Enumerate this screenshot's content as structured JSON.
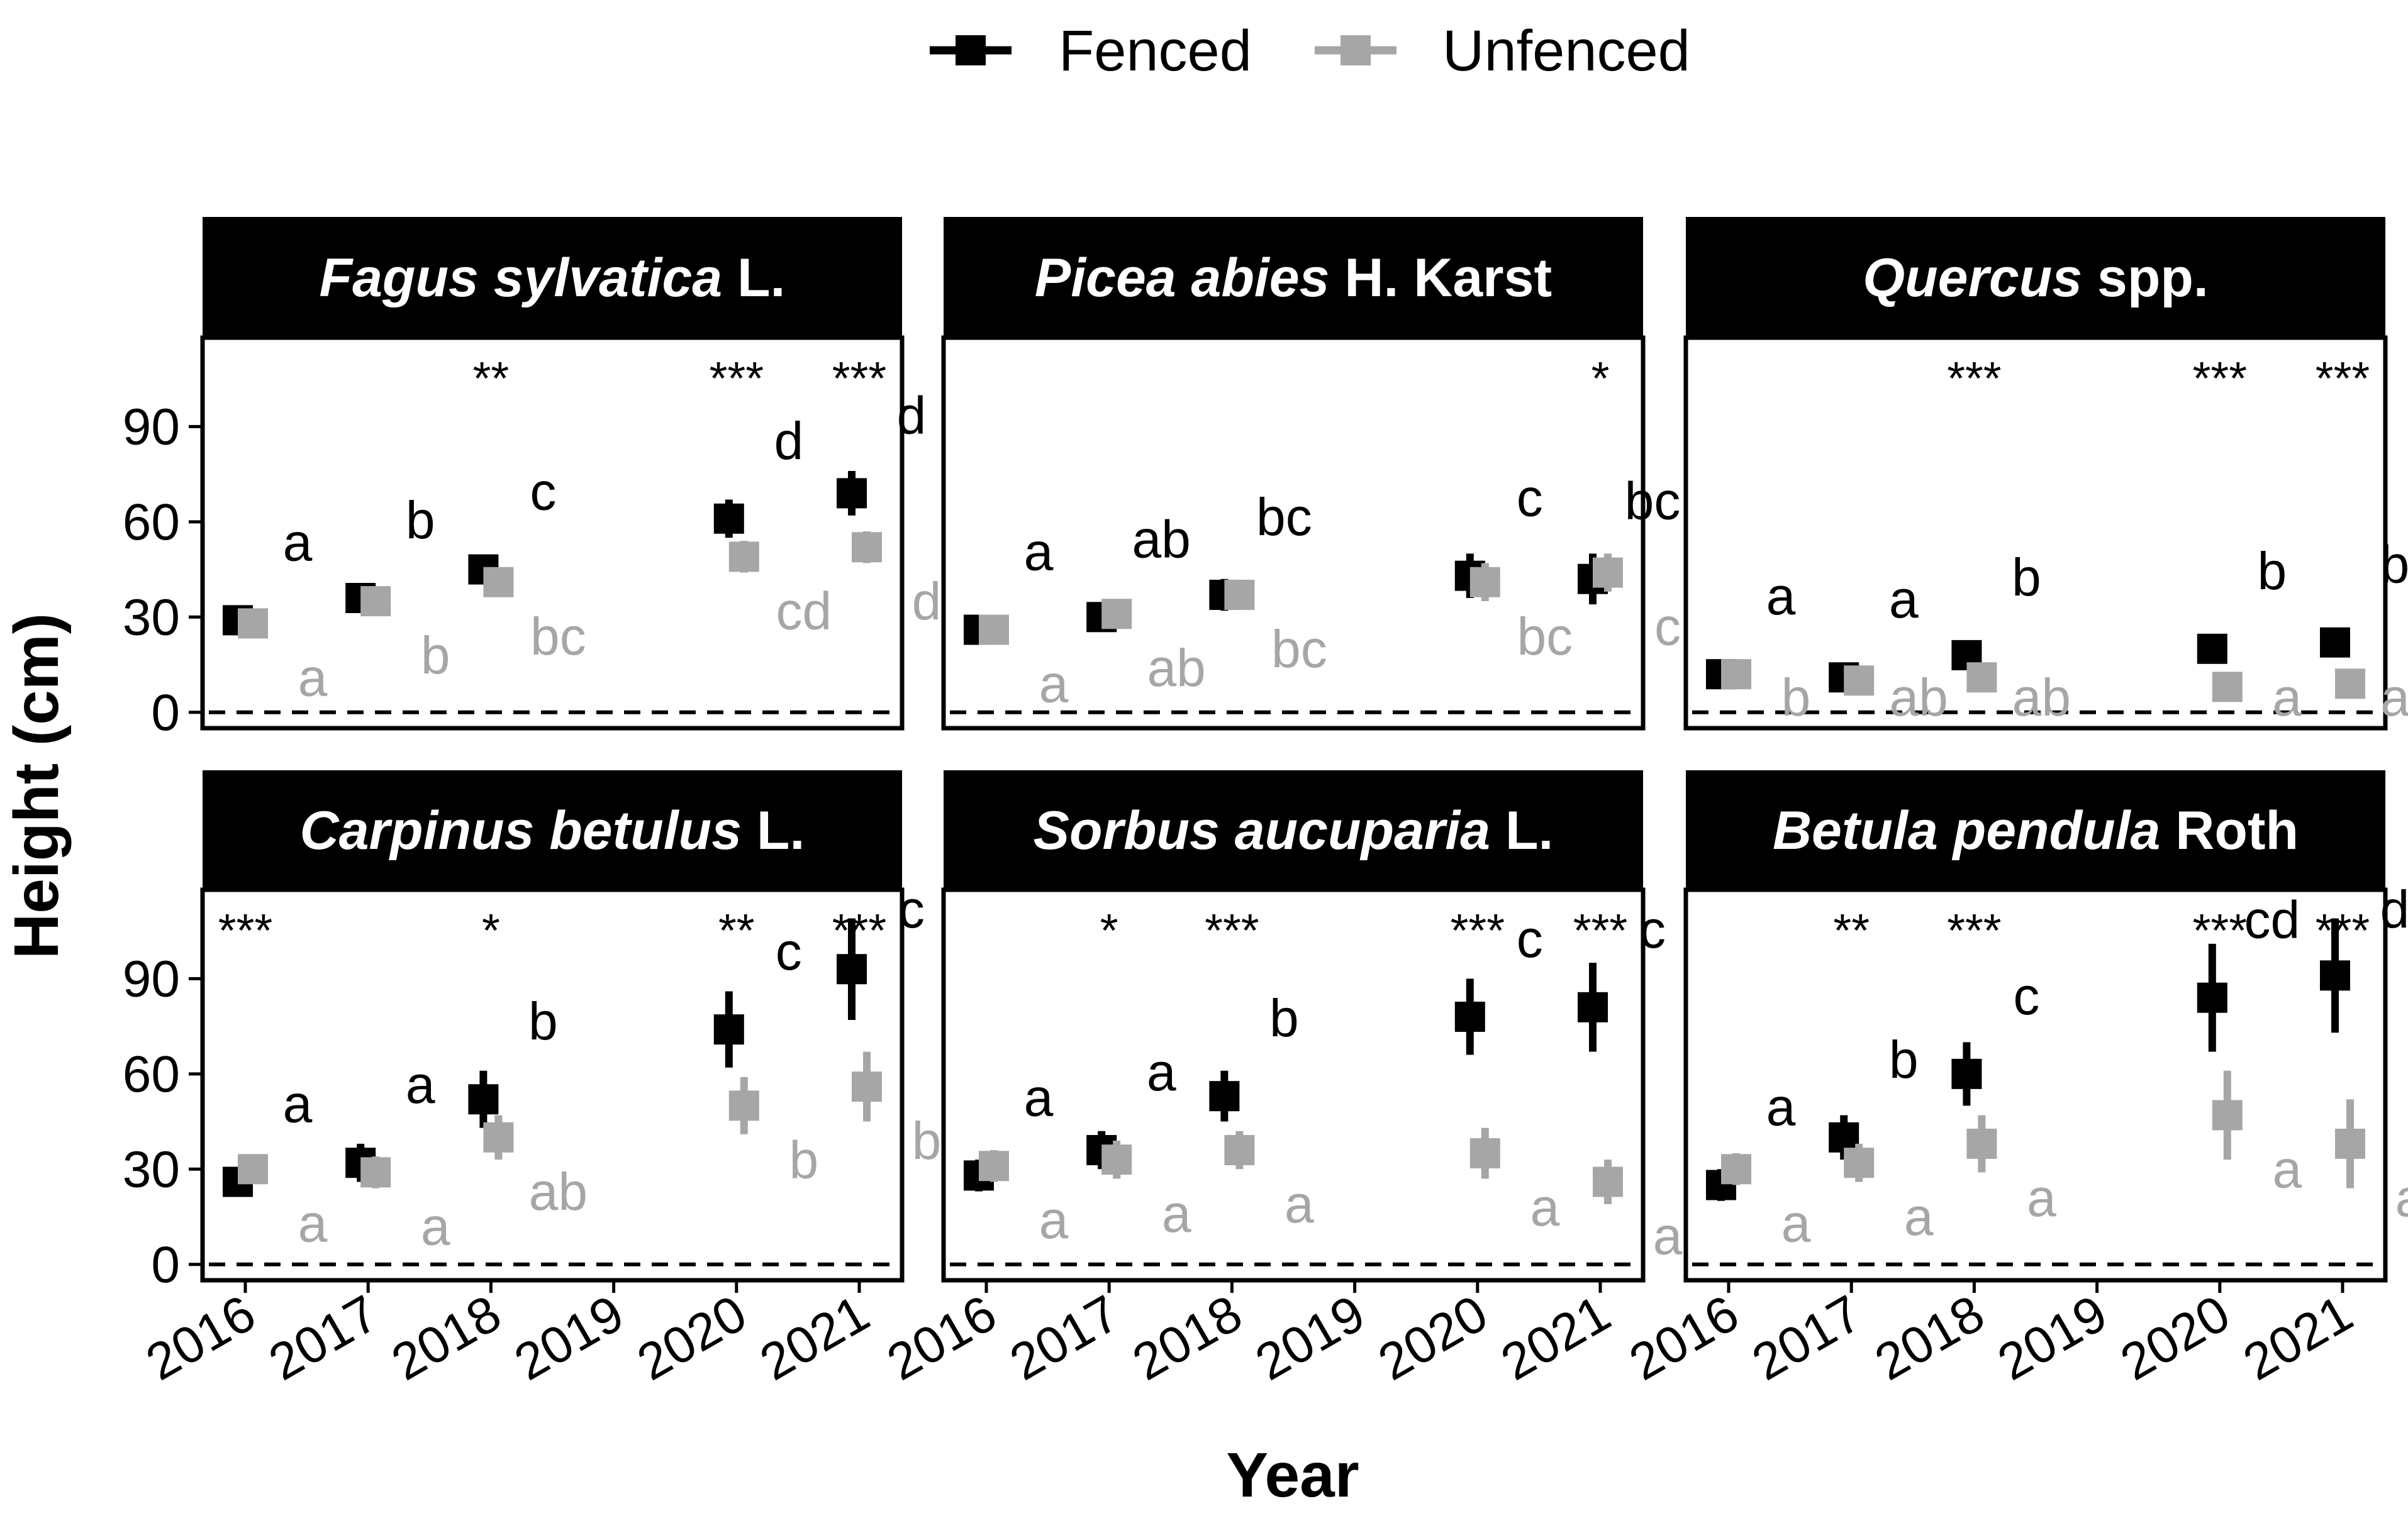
{
  "legend": [
    {
      "name": "Fenced",
      "color": "#000000"
    },
    {
      "name": "Unfenced",
      "color": "#a6a6a6"
    }
  ],
  "colors": {
    "fenced": "#000000",
    "unfenced": "#a6a6a6",
    "strip": "#000000"
  },
  "chart_data": {
    "type": "scatter",
    "subtype": "faceted point-range plot",
    "xlabel": "Year",
    "ylabel": "Height (cm)",
    "x_ticks": [
      "2016",
      "2017",
      "2018",
      "2019",
      "2020",
      "2021"
    ],
    "y_ticks": [
      "0",
      "30",
      "60",
      "90"
    ],
    "ylim": [
      -5,
      118
    ],
    "reference_line_y": 0,
    "panels": [
      {
        "title_italic": "Fagus sylvatica",
        "title_plain": " L.",
        "series": [
          {
            "name": "Fenced",
            "points": [
              {
                "x": 2016,
                "y": 29,
                "lo": 26,
                "hi": 32,
                "letter": "a"
              },
              {
                "x": 2017,
                "y": 36,
                "lo": 33,
                "hi": 39,
                "letter": "b"
              },
              {
                "x": 2018,
                "y": 45,
                "lo": 41,
                "hi": 49,
                "letter": "c"
              },
              {
                "x": 2020,
                "y": 61,
                "lo": 55,
                "hi": 67,
                "letter": "d"
              },
              {
                "x": 2021,
                "y": 69,
                "lo": 62,
                "hi": 76,
                "letter": "d"
              }
            ]
          },
          {
            "name": "Unfenced",
            "points": [
              {
                "x": 2016,
                "y": 28,
                "lo": 25,
                "hi": 31,
                "letter": "a"
              },
              {
                "x": 2017,
                "y": 35,
                "lo": 32,
                "hi": 38,
                "letter": "b"
              },
              {
                "x": 2018,
                "y": 41,
                "lo": 38,
                "hi": 44,
                "letter": "bc"
              },
              {
                "x": 2020,
                "y": 49,
                "lo": 44,
                "hi": 54,
                "letter": "cd"
              },
              {
                "x": 2021,
                "y": 52,
                "lo": 47,
                "hi": 57,
                "letter": "d"
              }
            ]
          }
        ],
        "significance": [
          {
            "x": 2018,
            "label": "**"
          },
          {
            "x": 2020,
            "label": "***"
          },
          {
            "x": 2021,
            "label": "***"
          }
        ]
      },
      {
        "title_italic": "Picea abies",
        "title_plain": " H. Karst",
        "series": [
          {
            "name": "Fenced",
            "points": [
              {
                "x": 2016,
                "y": 26,
                "lo": 23,
                "hi": 29,
                "letter": "a"
              },
              {
                "x": 2017,
                "y": 30,
                "lo": 26,
                "hi": 34,
                "letter": "ab"
              },
              {
                "x": 2018,
                "y": 37,
                "lo": 32,
                "hi": 42,
                "letter": "bc"
              },
              {
                "x": 2020,
                "y": 43,
                "lo": 36,
                "hi": 50,
                "letter": "c"
              },
              {
                "x": 2021,
                "y": 42,
                "lo": 34,
                "hi": 50,
                "letter": "bc"
              }
            ]
          },
          {
            "name": "Unfenced",
            "points": [
              {
                "x": 2016,
                "y": 26,
                "lo": 23,
                "hi": 29,
                "letter": "a"
              },
              {
                "x": 2017,
                "y": 31,
                "lo": 27,
                "hi": 35,
                "letter": "ab"
              },
              {
                "x": 2018,
                "y": 37,
                "lo": 33,
                "hi": 41,
                "letter": "bc"
              },
              {
                "x": 2020,
                "y": 41,
                "lo": 35,
                "hi": 47,
                "letter": "bc"
              },
              {
                "x": 2021,
                "y": 44,
                "lo": 38,
                "hi": 50,
                "letter": "c"
              }
            ]
          }
        ],
        "significance": [
          {
            "x": 2021,
            "label": "*"
          }
        ]
      },
      {
        "title_italic": "Quercus",
        "title_plain": " spp.",
        "series": [
          {
            "name": "Fenced",
            "points": [
              {
                "x": 2016,
                "y": 12,
                "lo": 10,
                "hi": 14,
                "letter": "a"
              },
              {
                "x": 2017,
                "y": 11,
                "lo": 9,
                "hi": 13,
                "letter": "a"
              },
              {
                "x": 2018,
                "y": 18,
                "lo": 15,
                "hi": 21,
                "letter": "b"
              },
              {
                "x": 2020,
                "y": 20,
                "lo": 16,
                "hi": 24,
                "letter": "b"
              },
              {
                "x": 2021,
                "y": 22,
                "lo": 18,
                "hi": 26,
                "letter": "b"
              }
            ]
          },
          {
            "name": "Unfenced",
            "points": [
              {
                "x": 2016,
                "y": 12,
                "lo": 10,
                "hi": 14,
                "letter": "b"
              },
              {
                "x": 2017,
                "y": 10,
                "lo": 8,
                "hi": 12,
                "letter": "ab"
              },
              {
                "x": 2018,
                "y": 11,
                "lo": 9,
                "hi": 13,
                "letter": "ab"
              },
              {
                "x": 2020,
                "y": 8,
                "lo": 6,
                "hi": 10,
                "letter": "a"
              },
              {
                "x": 2021,
                "y": 9,
                "lo": 7,
                "hi": 11,
                "letter": "ab"
              }
            ]
          }
        ],
        "significance": [
          {
            "x": 2018,
            "label": "***"
          },
          {
            "x": 2020,
            "label": "***"
          },
          {
            "x": 2021,
            "label": "***"
          }
        ]
      },
      {
        "title_italic": "Carpinus betulus",
        "title_plain": " L.",
        "series": [
          {
            "name": "Fenced",
            "points": [
              {
                "x": 2016,
                "y": 26,
                "lo": 22,
                "hi": 30,
                "letter": "a"
              },
              {
                "x": 2017,
                "y": 32,
                "lo": 26,
                "hi": 38,
                "letter": "a"
              },
              {
                "x": 2018,
                "y": 52,
                "lo": 43,
                "hi": 61,
                "letter": "b"
              },
              {
                "x": 2020,
                "y": 74,
                "lo": 62,
                "hi": 86,
                "letter": "c"
              },
              {
                "x": 2021,
                "y": 93,
                "lo": 77,
                "hi": 109,
                "letter": "c"
              }
            ]
          },
          {
            "name": "Unfenced",
            "points": [
              {
                "x": 2016,
                "y": 30,
                "lo": 26,
                "hi": 34,
                "letter": "a"
              },
              {
                "x": 2017,
                "y": 29,
                "lo": 24,
                "hi": 34,
                "letter": "a"
              },
              {
                "x": 2018,
                "y": 40,
                "lo": 33,
                "hi": 47,
                "letter": "ab"
              },
              {
                "x": 2020,
                "y": 50,
                "lo": 41,
                "hi": 59,
                "letter": "b"
              },
              {
                "x": 2021,
                "y": 56,
                "lo": 45,
                "hi": 67,
                "letter": "b"
              }
            ]
          }
        ],
        "significance": [
          {
            "x": 2016,
            "label": "***"
          },
          {
            "x": 2018,
            "label": "*"
          },
          {
            "x": 2020,
            "label": "**"
          },
          {
            "x": 2021,
            "label": "***"
          }
        ]
      },
      {
        "title_italic": "Sorbus aucuparia",
        "title_plain": " L.",
        "series": [
          {
            "name": "Fenced",
            "points": [
              {
                "x": 2016,
                "y": 28,
                "lo": 23,
                "hi": 33,
                "letter": "a"
              },
              {
                "x": 2017,
                "y": 36,
                "lo": 30,
                "hi": 42,
                "letter": "a"
              },
              {
                "x": 2018,
                "y": 53,
                "lo": 45,
                "hi": 61,
                "letter": "b"
              },
              {
                "x": 2020,
                "y": 78,
                "lo": 66,
                "hi": 90,
                "letter": "c"
              },
              {
                "x": 2021,
                "y": 81,
                "lo": 67,
                "hi": 95,
                "letter": "c"
              }
            ]
          },
          {
            "name": "Unfenced",
            "points": [
              {
                "x": 2016,
                "y": 31,
                "lo": 26,
                "hi": 36,
                "letter": "a"
              },
              {
                "x": 2017,
                "y": 33,
                "lo": 27,
                "hi": 39,
                "letter": "a"
              },
              {
                "x": 2018,
                "y": 36,
                "lo": 30,
                "hi": 42,
                "letter": "a"
              },
              {
                "x": 2020,
                "y": 35,
                "lo": 27,
                "hi": 43,
                "letter": "a"
              },
              {
                "x": 2021,
                "y": 26,
                "lo": 19,
                "hi": 33,
                "letter": "a"
              }
            ]
          }
        ],
        "significance": [
          {
            "x": 2017,
            "label": "*"
          },
          {
            "x": 2018,
            "label": "***"
          },
          {
            "x": 2020,
            "label": "***"
          },
          {
            "x": 2021,
            "label": "***"
          }
        ]
      },
      {
        "title_italic": "Betula pendula",
        "title_plain": " Roth",
        "series": [
          {
            "name": "Fenced",
            "points": [
              {
                "x": 2016,
                "y": 25,
                "lo": 20,
                "hi": 30,
                "letter": "a"
              },
              {
                "x": 2017,
                "y": 40,
                "lo": 33,
                "hi": 47,
                "letter": "b"
              },
              {
                "x": 2018,
                "y": 60,
                "lo": 50,
                "hi": 70,
                "letter": "c"
              },
              {
                "x": 2020,
                "y": 84,
                "lo": 67,
                "hi": 101,
                "letter": "cd"
              },
              {
                "x": 2021,
                "y": 91,
                "lo": 73,
                "hi": 109,
                "letter": "d"
              }
            ]
          },
          {
            "name": "Unfenced",
            "points": [
              {
                "x": 2016,
                "y": 30,
                "lo": 25,
                "hi": 35,
                "letter": "a"
              },
              {
                "x": 2017,
                "y": 32,
                "lo": 26,
                "hi": 38,
                "letter": "a"
              },
              {
                "x": 2018,
                "y": 38,
                "lo": 29,
                "hi": 47,
                "letter": "a"
              },
              {
                "x": 2020,
                "y": 47,
                "lo": 33,
                "hi": 61,
                "letter": "a"
              },
              {
                "x": 2021,
                "y": 38,
                "lo": 24,
                "hi": 52,
                "letter": "a"
              }
            ]
          }
        ],
        "significance": [
          {
            "x": 2017,
            "label": "**"
          },
          {
            "x": 2018,
            "label": "***"
          },
          {
            "x": 2020,
            "label": "***"
          },
          {
            "x": 2021,
            "label": "***"
          }
        ]
      }
    ]
  }
}
